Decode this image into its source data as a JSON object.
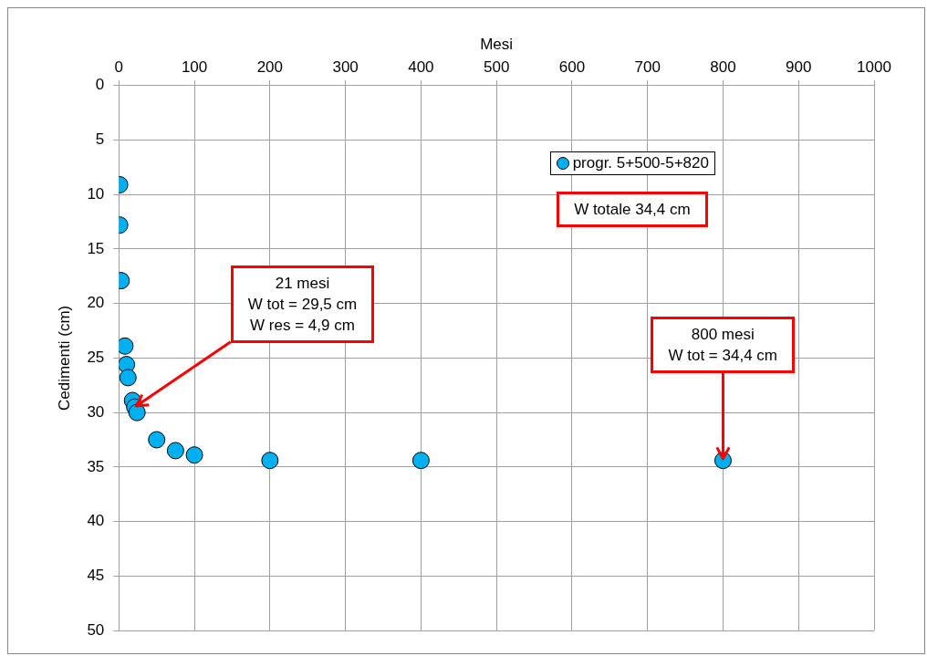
{
  "chart_data": {
    "type": "scatter",
    "xlabel": "Mesi",
    "ylabel": "Cedimenti (cm)",
    "series": [
      {
        "name": "progr. 5+500-5+820",
        "color": "#00b0f0",
        "x": [
          1,
          1,
          3,
          8,
          10,
          12,
          18,
          21,
          24,
          50,
          75,
          100,
          200,
          400,
          800
        ],
        "values": [
          9.1,
          12.8,
          17.9,
          23.9,
          25.6,
          26.8,
          28.9,
          29.5,
          30.0,
          32.5,
          33.5,
          33.9,
          34.4,
          34.4,
          34.4
        ]
      }
    ],
    "xlim": [
      0,
      1000
    ],
    "xticks": [
      0,
      100,
      200,
      300,
      400,
      500,
      600,
      700,
      800,
      900,
      1000
    ],
    "ylim": [
      50,
      0
    ],
    "yticks": [
      0,
      5,
      10,
      15,
      20,
      25,
      30,
      35,
      40,
      45,
      50
    ],
    "grid": true,
    "legend": "top right",
    "marker": "circle",
    "annotations": [
      "W totale 34,4 cm",
      {
        "text": "21 mesi\nW tot = 29,5 cm\nW res = 4,9 cm",
        "x": 21,
        "y": 29.5
      },
      {
        "text": "800 mesi\nW tot = 34,4 cm",
        "x": 800,
        "y": 34.4
      }
    ]
  }
}
